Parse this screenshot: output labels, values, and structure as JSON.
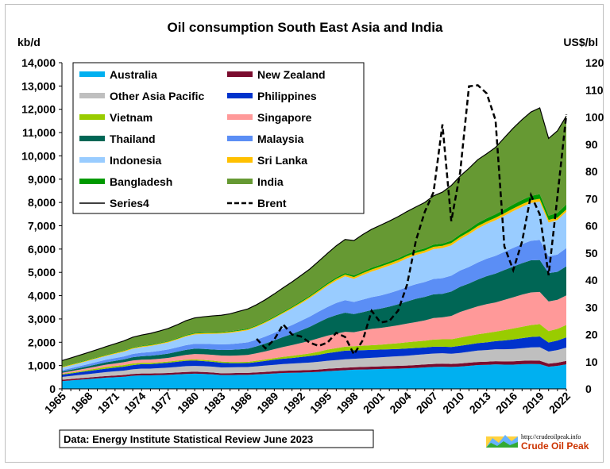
{
  "chart_data": {
    "type": "area",
    "title": "Oil consumption South East Asia and India",
    "left_unit": "kb/d",
    "right_unit": "US$/bl",
    "years": [
      1965,
      1966,
      1967,
      1968,
      1969,
      1970,
      1971,
      1972,
      1973,
      1974,
      1975,
      1976,
      1977,
      1978,
      1979,
      1980,
      1981,
      1982,
      1983,
      1984,
      1985,
      1986,
      1987,
      1988,
      1989,
      1990,
      1991,
      1992,
      1993,
      1994,
      1995,
      1996,
      1997,
      1998,
      1999,
      2000,
      2001,
      2002,
      2003,
      2004,
      2005,
      2006,
      2007,
      2008,
      2009,
      2010,
      2011,
      2012,
      2013,
      2014,
      2015,
      2016,
      2017,
      2018,
      2019,
      2020,
      2021,
      2022
    ],
    "x_tick_labels": [
      "1965",
      "1968",
      "1971",
      "1974",
      "1977",
      "1980",
      "1983",
      "1986",
      "1989",
      "1992",
      "1995",
      "1998",
      "2001",
      "2004",
      "2007",
      "2010",
      "2013",
      "2016",
      "2019",
      "2022"
    ],
    "y_left": {
      "min": 0,
      "max": 14000,
      "step": 1000,
      "tick_labels": [
        "0",
        "1,000",
        "2,000",
        "3,000",
        "4,000",
        "5,000",
        "6,000",
        "7,000",
        "8,000",
        "9,000",
        "10,000",
        "11,000",
        "12,000",
        "13,000",
        "14,000"
      ]
    },
    "y_right": {
      "min": 0,
      "max": 120,
      "step": 10,
      "tick_labels": [
        "0",
        "10",
        "20",
        "30",
        "40",
        "50",
        "60",
        "70",
        "80",
        "90",
        "100",
        "110",
        "120"
      ]
    },
    "series": [
      {
        "name": "Australia",
        "color": "#00b0f0",
        "values": [
          330,
          360,
          390,
          420,
          450,
          480,
          500,
          520,
          560,
          580,
          580,
          590,
          600,
          620,
          640,
          650,
          640,
          620,
          590,
          590,
          600,
          600,
          620,
          640,
          660,
          680,
          690,
          700,
          710,
          730,
          760,
          780,
          800,
          820,
          830,
          840,
          850,
          860,
          870,
          880,
          900,
          920,
          940,
          950,
          940,
          960,
          990,
          1020,
          1030,
          1050,
          1040,
          1040,
          1060,
          1070,
          1060,
          950,
          990,
          1050
        ]
      },
      {
        "name": "New Zealand",
        "color": "#7a0c2e",
        "values": [
          60,
          62,
          64,
          66,
          68,
          70,
          72,
          74,
          78,
          80,
          80,
          80,
          80,
          82,
          84,
          85,
          84,
          82,
          80,
          82,
          84,
          86,
          88,
          90,
          92,
          95,
          96,
          98,
          100,
          102,
          104,
          106,
          108,
          110,
          112,
          114,
          116,
          118,
          120,
          122,
          124,
          126,
          128,
          130,
          128,
          130,
          132,
          134,
          136,
          138,
          140,
          142,
          144,
          148,
          150,
          130,
          135,
          150
        ]
      },
      {
        "name": "Other Asia Pacific",
        "color": "#bfbfbf",
        "values": [
          120,
          130,
          140,
          150,
          160,
          170,
          180,
          190,
          200,
          210,
          210,
          220,
          230,
          240,
          250,
          250,
          250,
          250,
          250,
          250,
          250,
          250,
          260,
          270,
          280,
          290,
          300,
          310,
          320,
          330,
          340,
          350,
          360,
          360,
          370,
          380,
          390,
          400,
          410,
          420,
          430,
          440,
          450,
          450,
          440,
          450,
          470,
          490,
          500,
          510,
          520,
          530,
          540,
          560,
          580,
          520,
          540,
          570
        ]
      },
      {
        "name": "Philippines",
        "color": "#0033cc",
        "values": [
          100,
          110,
          120,
          130,
          140,
          150,
          160,
          170,
          180,
          190,
          190,
          200,
          210,
          220,
          230,
          230,
          220,
          210,
          200,
          180,
          170,
          170,
          180,
          200,
          220,
          230,
          240,
          260,
          280,
          300,
          330,
          350,
          370,
          360,
          350,
          340,
          330,
          320,
          310,
          310,
          300,
          290,
          290,
          280,
          290,
          310,
          310,
          320,
          330,
          350,
          380,
          410,
          430,
          450,
          460,
          390,
          410,
          440
        ]
      },
      {
        "name": "Vietnam",
        "color": "#99cc00",
        "values": [
          30,
          35,
          40,
          50,
          60,
          70,
          70,
          70,
          70,
          60,
          60,
          50,
          50,
          50,
          50,
          50,
          50,
          50,
          50,
          50,
          50,
          50,
          60,
          60,
          70,
          80,
          90,
          100,
          110,
          130,
          150,
          160,
          170,
          180,
          190,
          200,
          210,
          230,
          250,
          270,
          280,
          290,
          310,
          320,
          330,
          350,
          370,
          380,
          400,
          410,
          440,
          470,
          490,
          510,
          530,
          490,
          500,
          530
        ]
      },
      {
        "name": "Singapore",
        "color": "#ff9999",
        "values": [
          50,
          60,
          70,
          80,
          90,
          100,
          110,
          120,
          130,
          130,
          140,
          150,
          160,
          180,
          200,
          230,
          240,
          250,
          260,
          270,
          280,
          300,
          320,
          350,
          380,
          420,
          460,
          500,
          540,
          580,
          600,
          620,
          640,
          600,
          650,
          700,
          720,
          740,
          770,
          800,
          830,
          870,
          920,
          940,
          1000,
          1100,
          1150,
          1200,
          1240,
          1250,
          1300,
          1340,
          1380,
          1400,
          1380,
          1270,
          1250,
          1270
        ]
      },
      {
        "name": "Thailand",
        "color": "#006655",
        "values": [
          50,
          60,
          70,
          80,
          90,
          100,
          110,
          120,
          140,
          150,
          160,
          170,
          180,
          200,
          220,
          230,
          230,
          230,
          240,
          250,
          260,
          270,
          300,
          340,
          380,
          430,
          480,
          540,
          600,
          680,
          750,
          800,
          820,
          780,
          790,
          810,
          830,
          860,
          900,
          950,
          1000,
          1010,
          1020,
          1010,
          1050,
          1080,
          1100,
          1150,
          1200,
          1240,
          1280,
          1320,
          1350,
          1380,
          1370,
          1220,
          1200,
          1250
        ]
      },
      {
        "name": "Malaysia",
        "color": "#5b8ef5",
        "values": [
          60,
          70,
          80,
          90,
          100,
          110,
          120,
          130,
          140,
          150,
          160,
          170,
          180,
          190,
          200,
          210,
          220,
          230,
          240,
          250,
          260,
          270,
          280,
          300,
          320,
          350,
          380,
          410,
          440,
          460,
          480,
          520,
          540,
          520,
          540,
          550,
          560,
          580,
          600,
          620,
          630,
          640,
          660,
          670,
          680,
          700,
          710,
          730,
          750,
          760,
          780,
          800,
          820,
          840,
          860,
          720,
          740,
          780
        ]
      },
      {
        "name": "Indonesia",
        "color": "#99ccff",
        "values": [
          110,
          120,
          130,
          140,
          150,
          160,
          180,
          200,
          220,
          240,
          260,
          280,
          300,
          330,
          370,
          400,
          420,
          440,
          460,
          480,
          500,
          520,
          550,
          580,
          620,
          660,
          700,
          740,
          790,
          840,
          900,
          960,
          1020,
          990,
          1050,
          1100,
          1150,
          1180,
          1200,
          1230,
          1250,
          1260,
          1280,
          1290,
          1300,
          1340,
          1400,
          1460,
          1490,
          1530,
          1550,
          1580,
          1600,
          1620,
          1650,
          1450,
          1480,
          1560
        ]
      },
      {
        "name": "Sri Lanka",
        "color": "#ffc000",
        "values": [
          30,
          30,
          30,
          30,
          30,
          35,
          35,
          35,
          35,
          35,
          35,
          35,
          35,
          35,
          40,
          40,
          40,
          40,
          40,
          40,
          40,
          40,
          40,
          45,
          45,
          45,
          50,
          55,
          60,
          65,
          70,
          75,
          80,
          80,
          85,
          90,
          95,
          95,
          95,
          95,
          95,
          95,
          100,
          100,
          100,
          100,
          105,
          105,
          105,
          105,
          110,
          110,
          115,
          115,
          120,
          110,
          110,
          100
        ]
      },
      {
        "name": "Bangladesh",
        "color": "#009900",
        "values": [
          20,
          20,
          20,
          20,
          20,
          20,
          20,
          20,
          25,
          25,
          25,
          25,
          25,
          30,
          30,
          30,
          30,
          30,
          30,
          30,
          35,
          35,
          35,
          35,
          40,
          40,
          45,
          50,
          50,
          55,
          60,
          60,
          65,
          65,
          70,
          75,
          75,
          80,
          80,
          85,
          90,
          90,
          95,
          95,
          100,
          110,
          120,
          130,
          140,
          150,
          160,
          170,
          180,
          190,
          200,
          180,
          200,
          210
        ]
      },
      {
        "name": "India",
        "color": "#669933",
        "values": [
          250,
          270,
          290,
          310,
          330,
          350,
          380,
          410,
          440,
          460,
          480,
          510,
          540,
          570,
          610,
          640,
          670,
          700,
          720,
          750,
          800,
          840,
          880,
          920,
          970,
          1020,
          1060,
          1100,
          1140,
          1200,
          1270,
          1360,
          1440,
          1500,
          1590,
          1650,
          1700,
          1740,
          1790,
          1830,
          1880,
          1970,
          2090,
          2210,
          2370,
          2500,
          2610,
          2720,
          2770,
          2870,
          3080,
          3280,
          3450,
          3600,
          3700,
          3320,
          3520,
          3800
        ]
      }
    ],
    "brent": {
      "name": "Brent",
      "start_year": 1987,
      "values": [
        18.4,
        14.9,
        18.2,
        23.7,
        20.0,
        19.3,
        17.0,
        15.8,
        17.0,
        20.6,
        19.1,
        12.7,
        17.9,
        28.7,
        24.4,
        25.0,
        28.8,
        38.3,
        54.5,
        65.1,
        72.4,
        97.3,
        61.7,
        79.6,
        111.3,
        111.7,
        108.7,
        98.9,
        52.4,
        43.7,
        54.2,
        71.3,
        64.2,
        41.8,
        70.9,
        100.9
      ]
    },
    "legend": [
      {
        "label": "Australia",
        "swatch": "#00b0f0",
        "kind": "area"
      },
      {
        "label": "New Zealand",
        "swatch": "#7a0c2e",
        "kind": "area"
      },
      {
        "label": "Other Asia Pacific",
        "swatch": "#bfbfbf",
        "kind": "area"
      },
      {
        "label": "Philippines",
        "swatch": "#0033cc",
        "kind": "area"
      },
      {
        "label": "Vietnam",
        "swatch": "#99cc00",
        "kind": "area"
      },
      {
        "label": "Singapore",
        "swatch": "#ff9999",
        "kind": "area"
      },
      {
        "label": "Thailand",
        "swatch": "#006655",
        "kind": "area"
      },
      {
        "label": "Malaysia",
        "swatch": "#5b8ef5",
        "kind": "area"
      },
      {
        "label": "Indonesia",
        "swatch": "#99ccff",
        "kind": "area"
      },
      {
        "label": "Sri Lanka",
        "swatch": "#ffc000",
        "kind": "area"
      },
      {
        "label": "Bangladesh",
        "swatch": "#009900",
        "kind": "area"
      },
      {
        "label": "India",
        "swatch": "#669933",
        "kind": "area"
      },
      {
        "label": "Series4",
        "swatch": "#000000",
        "kind": "line"
      },
      {
        "label": "Brent",
        "swatch": "#000000",
        "kind": "dashed"
      }
    ],
    "legend_position": "top-left",
    "grid": false,
    "source_note": "Data: Energy Institute  Statistical Review June 2023",
    "logo": {
      "url_text": "http://crudeoilpeak.info",
      "name_text": "Crude Oil Peak"
    }
  }
}
